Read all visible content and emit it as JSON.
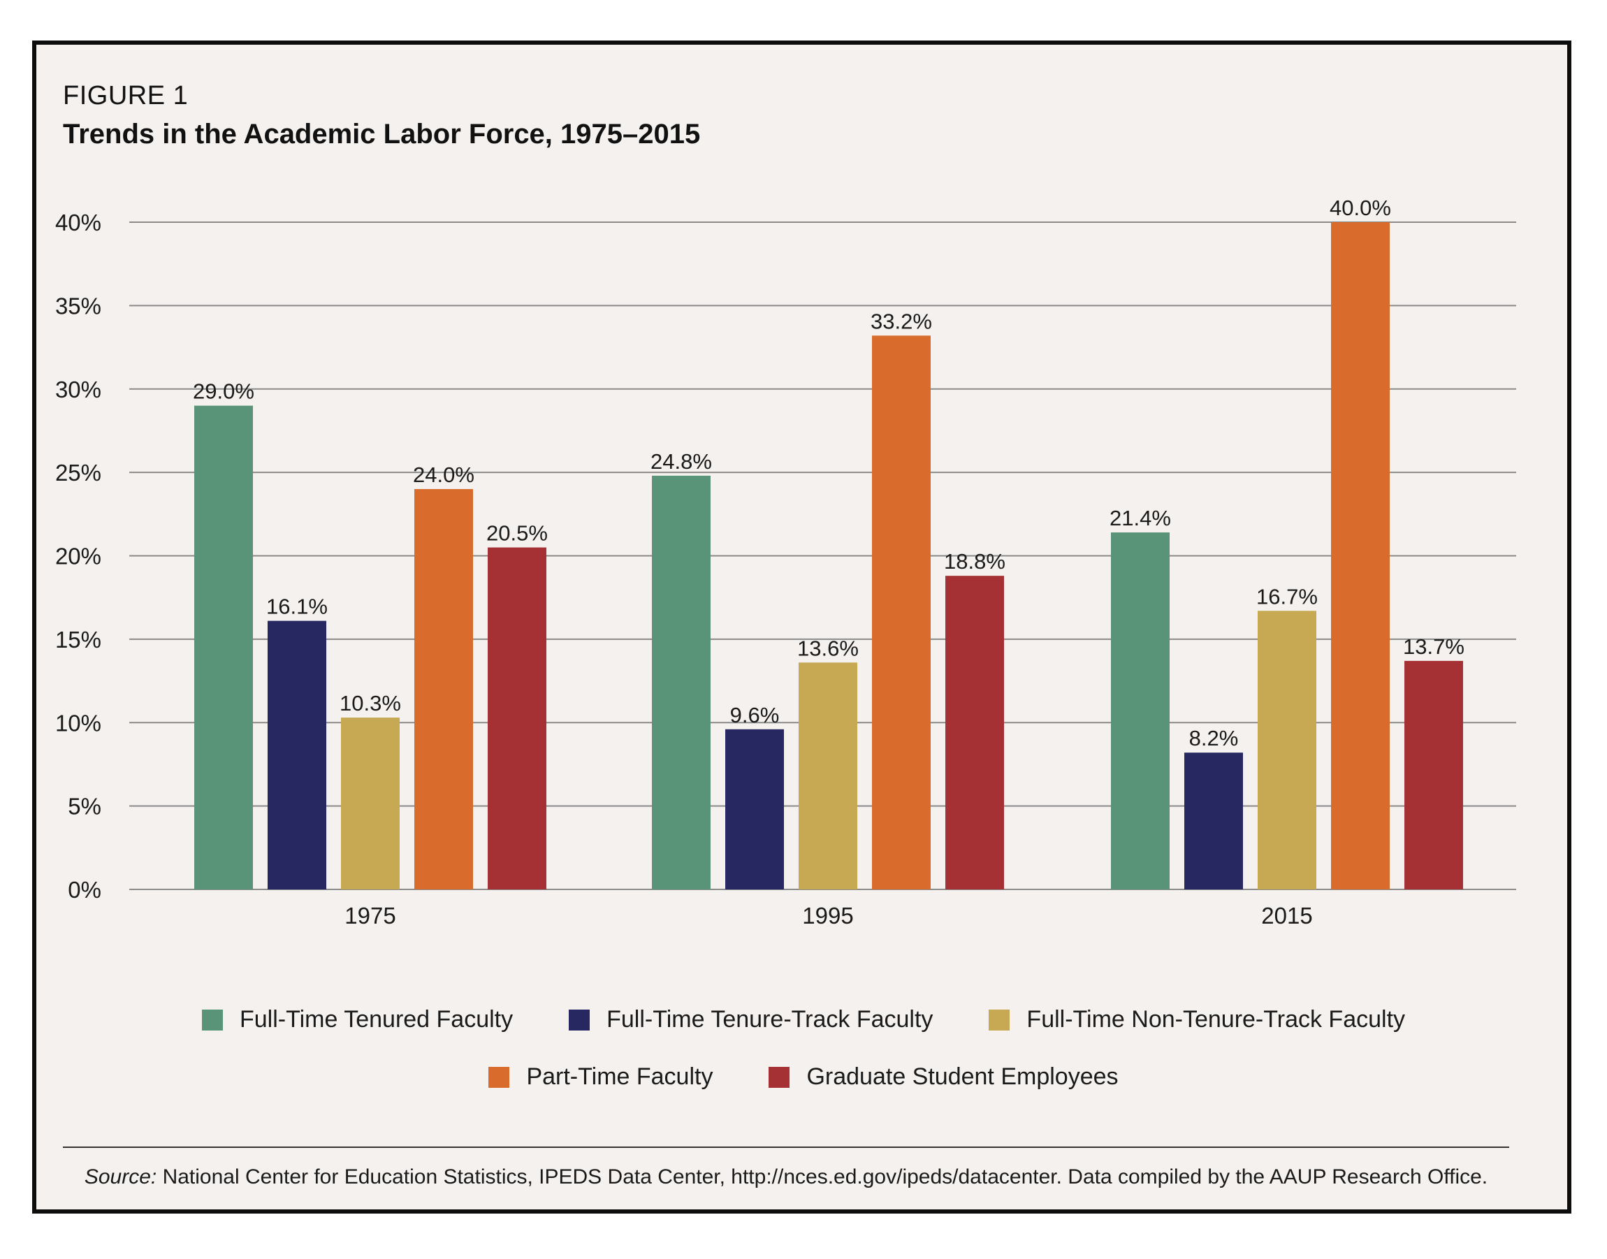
{
  "figure": {
    "label": "FIGURE 1",
    "title": "Trends in the Academic Labor Force, 1975–2015"
  },
  "chart_data": {
    "type": "bar",
    "categories": [
      "1975",
      "1995",
      "2015"
    ],
    "series": [
      {
        "name": "Full-Time Tenured Faculty",
        "color": "#5a9478",
        "values": [
          29.0,
          24.8,
          21.4
        ],
        "labels": [
          "29.0%",
          "24.8%",
          "21.4%"
        ]
      },
      {
        "name": "Full-Time Tenure-Track Faculty",
        "color": "#272862",
        "values": [
          16.1,
          9.6,
          8.2
        ],
        "labels": [
          "16.1%",
          "9.6%",
          "8.2%"
        ]
      },
      {
        "name": "Full-Time Non-Tenure-Track Faculty",
        "color": "#c6a952",
        "values": [
          10.3,
          13.6,
          16.7
        ],
        "labels": [
          "10.3%",
          "13.6%",
          "16.7%"
        ]
      },
      {
        "name": "Part-Time Faculty",
        "color": "#d96c2c",
        "values": [
          24.0,
          33.2,
          40.0
        ],
        "labels": [
          "24.0%",
          "33.2%",
          "40.0%"
        ]
      },
      {
        "name": "Graduate Student Employees",
        "color": "#a53134",
        "values": [
          20.5,
          18.8,
          13.7
        ],
        "labels": [
          "20.5%",
          "18.8%",
          "13.7%"
        ]
      }
    ],
    "ylim": [
      0,
      40
    ],
    "yticks": [
      0,
      5,
      10,
      15,
      20,
      25,
      30,
      35,
      40
    ],
    "ytick_labels": [
      "0%",
      "5%",
      "10%",
      "15%",
      "20%",
      "25%",
      "30%",
      "35%",
      "40%"
    ],
    "grid": true,
    "legend": "bottom"
  },
  "source": {
    "prefix": "Source:",
    "text": " National Center for Education Statistics, IPEDS Data Center, http://nces.ed.gov/ipeds/datacenter. Data compiled by the AAUP Research Office."
  }
}
